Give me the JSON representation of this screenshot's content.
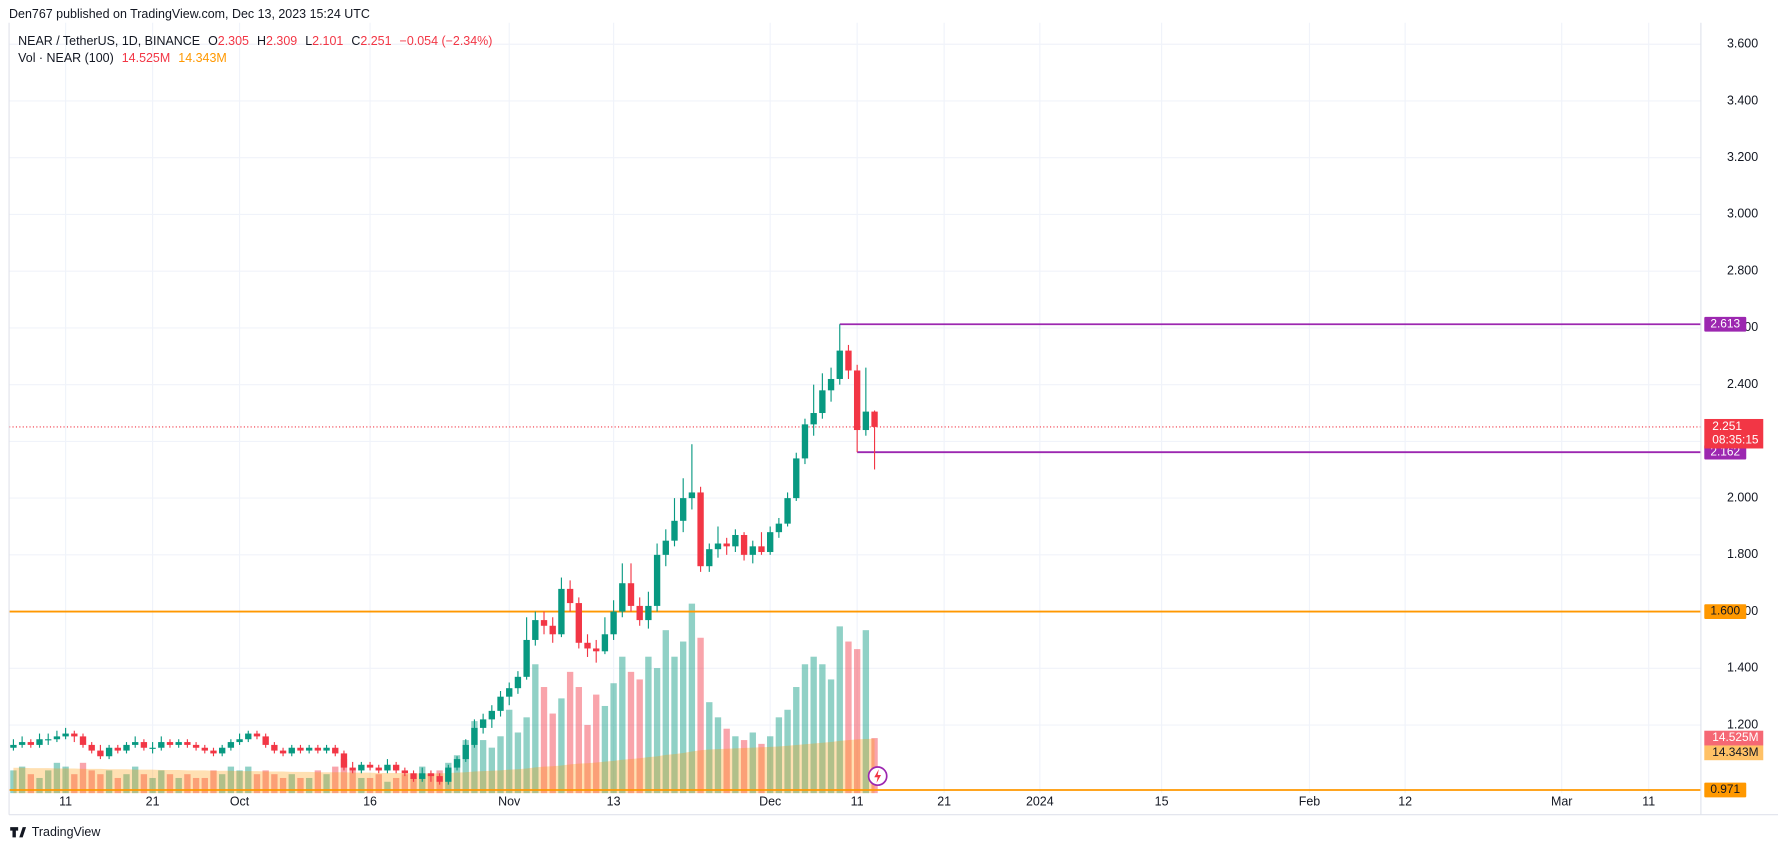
{
  "header": "Den767 published on TradingView.com, Dec 13, 2023 15:24 UTC",
  "footer": "TradingView",
  "chart_data": {
    "type": "candlestick",
    "symbol": "NEAR / TetherUS, 1D, BINANCE",
    "ohlc_letters": [
      "O",
      "H",
      "L",
      "C"
    ],
    "change": "−0.054 (−2.34%)",
    "up_color": "#089981",
    "down_color": "#f23645",
    "open": [
      1.12,
      1.13,
      1.14,
      1.13,
      1.15,
      1.15,
      1.16,
      1.17,
      1.16,
      1.13,
      1.11,
      1.09,
      1.12,
      1.11,
      1.13,
      1.14,
      1.12,
      1.12,
      1.14,
      1.13,
      1.14,
      1.13,
      1.12,
      1.11,
      1.1,
      1.12,
      1.14,
      1.15,
      1.17,
      1.16,
      1.13,
      1.11,
      1.1,
      1.12,
      1.11,
      1.12,
      1.11,
      1.12,
      1.1,
      1.05,
      1.04,
      1.06,
      1.05,
      1.04,
      1.06,
      1.04,
      1.03,
      1.01,
      1.03,
      1.02,
      1.0,
      1.05,
      1.08,
      1.13,
      1.19,
      1.22,
      1.25,
      1.3,
      1.33,
      1.37,
      1.5,
      1.57,
      1.55,
      1.52,
      1.68,
      1.63,
      1.49,
      1.47,
      1.46,
      1.52,
      1.6,
      1.7,
      1.62,
      1.57,
      1.62,
      1.8,
      1.85,
      1.92,
      2.0,
      2.02,
      1.76,
      1.82,
      1.84,
      1.83,
      1.87,
      1.8,
      1.83,
      1.81,
      1.88,
      1.91,
      2.0,
      2.14,
      2.26,
      2.3,
      2.38,
      2.42,
      2.52,
      2.45,
      2.24,
      2.305
    ],
    "high": [
      1.15,
      1.16,
      1.15,
      1.17,
      1.17,
      1.18,
      1.19,
      1.18,
      1.17,
      1.14,
      1.13,
      1.13,
      1.13,
      1.14,
      1.16,
      1.15,
      1.14,
      1.16,
      1.15,
      1.15,
      1.15,
      1.14,
      1.13,
      1.12,
      1.13,
      1.15,
      1.17,
      1.18,
      1.18,
      1.17,
      1.14,
      1.12,
      1.13,
      1.13,
      1.13,
      1.13,
      1.13,
      1.13,
      1.11,
      1.07,
      1.07,
      1.07,
      1.06,
      1.08,
      1.07,
      1.05,
      1.04,
      1.05,
      1.04,
      1.03,
      1.06,
      1.09,
      1.15,
      1.22,
      1.24,
      1.27,
      1.32,
      1.35,
      1.39,
      1.58,
      1.6,
      1.6,
      1.58,
      1.72,
      1.71,
      1.65,
      1.52,
      1.5,
      1.58,
      1.64,
      1.77,
      1.77,
      1.65,
      1.67,
      1.84,
      1.89,
      2.0,
      2.07,
      2.19,
      2.04,
      1.84,
      1.9,
      1.86,
      1.89,
      1.88,
      1.85,
      1.88,
      1.9,
      1.93,
      2.02,
      2.16,
      2.28,
      2.4,
      2.44,
      2.46,
      2.613,
      2.54,
      2.47,
      2.46,
      2.309
    ],
    "low": [
      1.11,
      1.12,
      1.12,
      1.12,
      1.13,
      1.14,
      1.15,
      1.14,
      1.12,
      1.1,
      1.08,
      1.08,
      1.1,
      1.1,
      1.12,
      1.11,
      1.1,
      1.11,
      1.12,
      1.12,
      1.12,
      1.11,
      1.1,
      1.09,
      1.09,
      1.11,
      1.13,
      1.14,
      1.15,
      1.12,
      1.1,
      1.09,
      1.09,
      1.1,
      1.1,
      1.1,
      1.1,
      1.09,
      1.04,
      1.03,
      1.03,
      1.04,
      1.03,
      1.03,
      1.03,
      1.02,
      1.0,
      1.0,
      1.0,
      0.99,
      0.99,
      1.04,
      1.07,
      1.12,
      1.17,
      1.19,
      1.23,
      1.27,
      1.31,
      1.36,
      1.48,
      1.52,
      1.49,
      1.51,
      1.6,
      1.47,
      1.44,
      1.42,
      1.45,
      1.5,
      1.58,
      1.6,
      1.55,
      1.54,
      1.6,
      1.76,
      1.83,
      1.88,
      1.96,
      1.74,
      1.74,
      1.79,
      1.8,
      1.81,
      1.78,
      1.77,
      1.8,
      1.8,
      1.86,
      1.9,
      1.99,
      2.12,
      2.22,
      2.28,
      2.34,
      2.4,
      2.42,
      2.162,
      2.22,
      2.101
    ],
    "close": [
      1.13,
      1.14,
      1.13,
      1.15,
      1.15,
      1.16,
      1.17,
      1.16,
      1.13,
      1.11,
      1.09,
      1.12,
      1.11,
      1.13,
      1.14,
      1.12,
      1.12,
      1.14,
      1.13,
      1.14,
      1.13,
      1.12,
      1.11,
      1.1,
      1.12,
      1.14,
      1.15,
      1.17,
      1.16,
      1.13,
      1.11,
      1.1,
      1.12,
      1.11,
      1.12,
      1.11,
      1.12,
      1.1,
      1.05,
      1.04,
      1.06,
      1.05,
      1.04,
      1.06,
      1.04,
      1.03,
      1.01,
      1.03,
      1.02,
      1.0,
      1.05,
      1.08,
      1.13,
      1.19,
      1.22,
      1.25,
      1.3,
      1.33,
      1.37,
      1.5,
      1.57,
      1.55,
      1.52,
      1.68,
      1.63,
      1.49,
      1.47,
      1.46,
      1.52,
      1.6,
      1.7,
      1.62,
      1.57,
      1.62,
      1.8,
      1.85,
      1.92,
      2.0,
      2.02,
      1.76,
      1.82,
      1.84,
      1.83,
      1.87,
      1.8,
      1.83,
      1.81,
      1.88,
      1.91,
      2.0,
      2.14,
      2.26,
      2.3,
      2.38,
      2.42,
      2.52,
      2.45,
      2.24,
      2.305,
      2.251
    ],
    "volume": {
      "name": "Vol · NEAR (100)",
      "values": [
        6,
        7,
        5,
        4,
        6,
        8,
        7,
        5,
        8,
        6,
        5,
        6,
        4,
        5,
        7,
        5,
        4,
        6,
        5,
        4,
        5,
        4,
        4,
        6,
        5,
        7,
        6,
        7,
        5,
        6,
        5,
        4,
        5,
        4,
        4,
        6,
        5,
        7,
        9,
        6,
        4,
        4,
        5,
        3,
        4,
        5,
        4,
        7,
        5,
        6,
        8,
        10,
        14,
        19,
        14,
        12,
        15,
        22,
        16,
        20,
        34,
        28,
        21,
        25,
        32,
        28,
        18,
        26,
        23,
        29,
        36,
        32,
        30,
        36,
        33,
        43,
        36,
        40,
        50,
        41,
        24,
        20,
        17,
        15,
        14,
        16,
        13,
        15,
        20,
        22,
        28,
        34,
        36,
        34,
        30,
        44,
        40,
        38,
        43,
        14.525
      ],
      "value_labels": [
        null,
        null,
        null,
        null,
        null,
        null,
        null,
        null,
        null,
        null,
        null,
        null,
        null,
        null,
        null,
        null,
        null,
        null,
        null,
        null,
        null,
        null,
        null,
        null,
        null,
        null,
        null,
        null,
        null,
        null,
        null,
        null,
        null,
        null,
        null,
        null,
        null,
        null,
        null,
        null,
        null,
        null,
        null,
        null,
        null,
        null,
        null,
        null,
        null,
        null,
        null,
        null,
        null,
        null,
        null,
        null,
        null,
        null,
        null,
        null,
        null,
        null,
        null,
        null,
        null,
        null,
        null,
        null,
        null,
        null,
        null,
        null,
        null,
        null,
        null,
        null,
        null,
        null,
        null,
        null,
        null,
        null,
        null,
        null,
        null,
        null,
        null,
        null,
        null,
        null,
        null,
        null,
        null,
        null,
        null,
        null,
        null,
        null,
        null,
        "14.525M"
      ]
    },
    "volume_ma": {
      "color": "#ff9800",
      "values": [
        6.7,
        6.7,
        6.6,
        6.6,
        6.6,
        6.5,
        6.5,
        6.5,
        6.4,
        6.4,
        6.4,
        6.3,
        6.3,
        6.3,
        6.2,
        6.2,
        6.2,
        6.1,
        6.1,
        6.1,
        6.0,
        6.0,
        6.0,
        5.9,
        5.9,
        5.9,
        5.8,
        5.8,
        5.8,
        5.7,
        5.7,
        5.7,
        5.6,
        5.6,
        5.6,
        5.5,
        5.5,
        5.5,
        5.5,
        5.4,
        5.4,
        5.4,
        5.3,
        5.3,
        5.3,
        5.3,
        5.2,
        5.2,
        5.2,
        5.2,
        5.3,
        5.4,
        5.5,
        5.7,
        5.8,
        5.9,
        6.0,
        6.2,
        6.3,
        6.5,
        6.8,
        7.0,
        7.1,
        7.3,
        7.6,
        7.8,
        7.9,
        8.1,
        8.3,
        8.5,
        8.8,
        9.0,
        9.2,
        9.5,
        9.7,
        10.1,
        10.3,
        10.6,
        11.0,
        11.3,
        11.5,
        11.6,
        11.7,
        11.8,
        11.9,
        12.0,
        12.1,
        12.2,
        12.3,
        12.5,
        12.7,
        12.9,
        13.1,
        13.3,
        13.5,
        13.8,
        14.0,
        14.2,
        14.3,
        14.343
      ],
      "value_labels": [
        null,
        null,
        null,
        null,
        null,
        null,
        null,
        null,
        null,
        null,
        null,
        null,
        null,
        null,
        null,
        null,
        null,
        null,
        null,
        null,
        null,
        null,
        null,
        null,
        null,
        null,
        null,
        null,
        null,
        null,
        null,
        null,
        null,
        null,
        null,
        null,
        null,
        null,
        null,
        null,
        null,
        null,
        null,
        null,
        null,
        null,
        null,
        null,
        null,
        null,
        null,
        null,
        null,
        null,
        null,
        null,
        null,
        null,
        null,
        null,
        null,
        null,
        null,
        null,
        null,
        null,
        null,
        null,
        null,
        null,
        null,
        null,
        null,
        null,
        null,
        null,
        null,
        null,
        null,
        null,
        null,
        null,
        null,
        null,
        null,
        null,
        null,
        null,
        null,
        null,
        null,
        null,
        null,
        null,
        null,
        null,
        null,
        null,
        null,
        "14.343M"
      ]
    },
    "countdown": "08:35:15",
    "levels": [
      {
        "value": 2.613,
        "color": "#9c27b0",
        "from": 95
      },
      {
        "value": 2.162,
        "color": "#9c27b0",
        "from": 97
      },
      {
        "value": 1.6,
        "label": "1.600",
        "color": "#ff9800"
      },
      {
        "value": 0.971,
        "color": "#ff9800"
      }
    ],
    "xlim": [
      -0.5,
      194
    ],
    "xticks": [
      {
        "value": 6,
        "label": "11"
      },
      {
        "value": 16,
        "label": "21"
      },
      {
        "value": 26,
        "label": "Oct"
      },
      {
        "value": 41,
        "label": "16"
      },
      {
        "value": 57,
        "label": "Nov"
      },
      {
        "value": 69,
        "label": "13"
      },
      {
        "value": 87,
        "label": "Dec"
      },
      {
        "value": 97,
        "label": "11"
      },
      {
        "value": 107,
        "label": "21"
      },
      {
        "value": 118,
        "label": "2024"
      },
      {
        "value": 132,
        "label": "15"
      },
      {
        "value": 149,
        "label": "Feb"
      },
      {
        "value": 160,
        "label": "12"
      },
      {
        "value": 178,
        "label": "Mar"
      },
      {
        "value": 188,
        "label": "11"
      }
    ],
    "ylim": [
      0.96,
      3.676
    ],
    "yticks": [
      {
        "value": 1.2,
        "label": "1.200"
      },
      {
        "value": 1.4,
        "label": "1.400"
      },
      {
        "value": 1.6,
        "label": "1.600"
      },
      {
        "value": 1.8,
        "label": "1.800"
      },
      {
        "value": 2.0,
        "label": "2.000"
      },
      {
        "value": 2.2,
        "label": "2.200"
      },
      {
        "value": 2.4,
        "label": "2.400"
      },
      {
        "value": 2.6,
        "label": "2.600"
      },
      {
        "value": 2.8,
        "label": "2.800"
      },
      {
        "value": 3.0,
        "label": "3.000"
      },
      {
        "value": 3.2,
        "label": "3.200"
      },
      {
        "value": 3.4,
        "label": "3.400"
      },
      {
        "value": 3.6,
        "label": "3.600"
      }
    ],
    "grid": true
  }
}
